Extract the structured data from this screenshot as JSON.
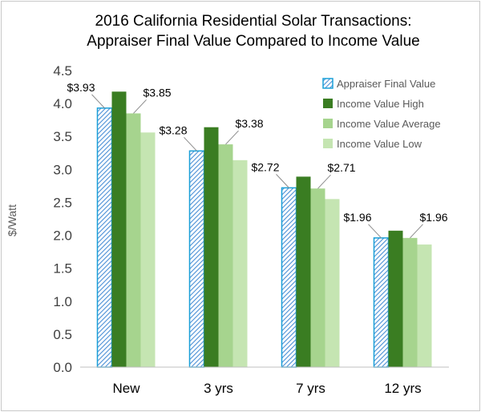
{
  "chart_data": {
    "type": "bar",
    "title_lines": [
      "2016 California Residential Solar Transactions:",
      "Appraiser Final Value Compared to Income Value"
    ],
    "ylabel": "$/Watt",
    "xlabel": "",
    "ylim": [
      0,
      4.5
    ],
    "yticks": [
      "0.0",
      "0.5",
      "1.0",
      "1.5",
      "2.0",
      "2.5",
      "3.0",
      "3.5",
      "4.0",
      "4.5"
    ],
    "ytick_values": [
      0,
      0.5,
      1.0,
      1.5,
      2.0,
      2.5,
      3.0,
      3.5,
      4.0,
      4.5
    ],
    "categories": [
      "New",
      "3 yrs",
      "7 yrs",
      "12 yrs"
    ],
    "series": [
      {
        "name": "Appraiser Final Value",
        "values": [
          3.93,
          3.28,
          2.72,
          1.96
        ],
        "color": "#1aa0d8",
        "pattern": "hatch"
      },
      {
        "name": "Income Value High",
        "values": [
          4.18,
          3.64,
          2.89,
          2.07
        ],
        "color": "#3a7d22"
      },
      {
        "name": "Income Value Average",
        "values": [
          3.85,
          3.38,
          2.71,
          1.96
        ],
        "color": "#a6d48e"
      },
      {
        "name": "Income Value Low",
        "values": [
          3.56,
          3.14,
          2.55,
          1.86
        ],
        "color": "#c5e5b2"
      }
    ],
    "data_labels": {
      "appraiser": [
        "$3.93",
        "$3.28",
        "$2.72",
        "$1.96"
      ],
      "average": [
        "$3.85",
        "$3.38",
        "$2.71",
        "$1.96"
      ]
    },
    "legend_position": "top-right",
    "grid": false
  }
}
